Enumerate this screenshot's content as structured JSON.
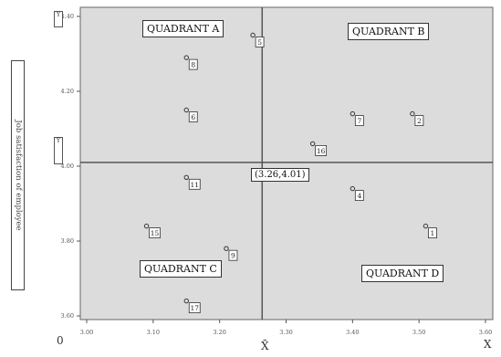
{
  "chart_data": {
    "type": "scatter",
    "title": "",
    "xlabel": "X",
    "xbar_label": "X̄",
    "ylabel": "Job satisfaction of employee",
    "y_axis_marker": "Y",
    "ybar_marker": "Ȳ",
    "origin_label": "0",
    "xlim": [
      3.0,
      3.6
    ],
    "ylim": [
      3.6,
      4.4
    ],
    "x_ticks": [
      "3.00",
      "3.10",
      "3.20",
      "3.30",
      "3.40",
      "3.50",
      "3.60"
    ],
    "y_ticks": [
      "3.60",
      "3.80",
      "4.00",
      "4.20",
      "4.40"
    ],
    "crosshair": {
      "x": 3.264,
      "y": 4.01,
      "label": "(3.26,4.01)"
    },
    "quadrants": [
      {
        "id": "A",
        "label": "QUADRANT A"
      },
      {
        "id": "B",
        "label": "QUADRANT B"
      },
      {
        "id": "C",
        "label": "QUADRANT C"
      },
      {
        "id": "D",
        "label": "QUADRANT D"
      }
    ],
    "points": [
      {
        "label": "5",
        "x": 3.25,
        "y": 4.35
      },
      {
        "label": "8",
        "x": 3.15,
        "y": 4.29
      },
      {
        "label": "6",
        "x": 3.15,
        "y": 4.15
      },
      {
        "label": "11",
        "x": 3.15,
        "y": 3.97
      },
      {
        "label": "15",
        "x": 3.09,
        "y": 3.84
      },
      {
        "label": "9",
        "x": 3.21,
        "y": 3.78
      },
      {
        "label": "17",
        "x": 3.15,
        "y": 3.64
      },
      {
        "label": "16",
        "x": 3.34,
        "y": 4.06
      },
      {
        "label": "7",
        "x": 3.4,
        "y": 4.14
      },
      {
        "label": "2",
        "x": 3.49,
        "y": 4.14
      },
      {
        "label": "4",
        "x": 3.4,
        "y": 3.94
      },
      {
        "label": "1",
        "x": 3.51,
        "y": 3.84
      }
    ],
    "grid": false,
    "background": "#dcdcdc"
  }
}
